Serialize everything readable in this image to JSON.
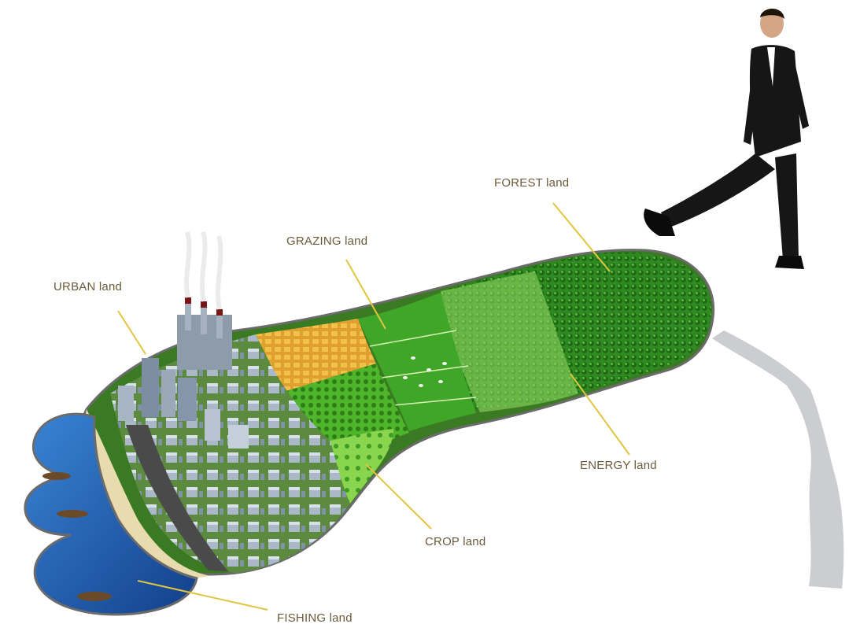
{
  "labels": {
    "urban": "URBAN land",
    "grazing": "GRAZING land",
    "forest": "FOREST land",
    "energy": "ENERGY land",
    "crop": "CROP land",
    "fishing": "FISHING land"
  },
  "colors": {
    "leader_line": "#e0c640",
    "label_text": "#6b5a3a",
    "sea": "#1f5fb8",
    "sand": "#e8dcae",
    "crop_yellow": "#e0a030",
    "grass": "#5fbf2e",
    "forest": "#2f8a22",
    "energy_green": "#7fd04a",
    "road": "#4a4a4a",
    "building": "#9aa8b8",
    "suit": "#161616",
    "shadow": "#b9bcc2"
  }
}
